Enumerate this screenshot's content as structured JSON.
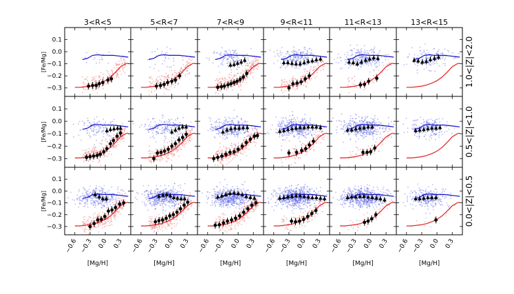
{
  "chart_data": {
    "type": "scatter",
    "xlabel": "[Mg/H]",
    "ylabel": "[Fe/Mg]",
    "xlim": [
      -0.8,
      0.5
    ],
    "ylim": [
      -0.37,
      0.2
    ],
    "xticks": [
      -0.6,
      -0.3,
      0.0,
      0.3
    ],
    "xtick_labels": [
      "−0.6",
      "−0.3",
      "0.0",
      "0.3"
    ],
    "yticks": [
      -0.3,
      -0.2,
      -0.1,
      0.0,
      0.1
    ],
    "ytick_labels": [
      "−0.3",
      "−0.2",
      "−0.1",
      "0.0",
      "0.1"
    ],
    "columns": [
      "3<R<5",
      "5<R<7",
      "7<R<9",
      "9<R<11",
      "11<R<13",
      "13<R<15"
    ],
    "rows": [
      "1.0<|Z|<2.0",
      "0.5<|Z|<1.0",
      "0.0<|Z|<0.5"
    ],
    "colors": {
      "blue_points": "#5b63e6",
      "red_points": "#f08080",
      "blue_line": "#1010c8",
      "red_line": "#e02020",
      "markers": "#000000"
    },
    "model_lines": {
      "blue": {
        "x": [
          -0.45,
          -0.35,
          -0.25,
          -0.15,
          -0.05,
          0.05,
          0.15,
          0.25,
          0.35,
          0.45
        ],
        "y": [
          -0.065,
          -0.055,
          -0.03,
          -0.025,
          -0.03,
          -0.03,
          -0.03,
          -0.035,
          -0.04,
          -0.045
        ]
      },
      "red": {
        "x": [
          -0.6,
          -0.5,
          -0.4,
          -0.3,
          -0.2,
          -0.1,
          0.0,
          0.1,
          0.2,
          0.3,
          0.4,
          0.45
        ],
        "y": [
          -0.295,
          -0.295,
          -0.29,
          -0.285,
          -0.275,
          -0.26,
          -0.24,
          -0.21,
          -0.17,
          -0.125,
          -0.1,
          -0.095
        ]
      }
    },
    "panels": [
      {
        "row": 0,
        "col": 0,
        "red_mean": {
          "x": [
            -0.33,
            -0.25,
            -0.18,
            -0.12,
            -0.05,
            0.05,
            0.12
          ],
          "y": [
            -0.285,
            -0.28,
            -0.28,
            -0.265,
            -0.255,
            -0.235,
            -0.225
          ]
        },
        "blue_mean": {
          "x": [],
          "y": []
        },
        "blue_density": 0.05,
        "red_density": 0.7
      },
      {
        "row": 0,
        "col": 1,
        "red_mean": {
          "x": [
            -0.3,
            -0.22,
            -0.15,
            -0.08,
            0.0,
            0.07,
            0.15
          ],
          "y": [
            -0.285,
            -0.28,
            -0.27,
            -0.255,
            -0.245,
            -0.235,
            -0.2
          ]
        },
        "blue_mean": {
          "x": [],
          "y": []
        },
        "blue_density": 0.1,
        "red_density": 0.7
      },
      {
        "row": 0,
        "col": 2,
        "red_mean": {
          "x": [
            -0.4,
            -0.33,
            -0.27,
            -0.2,
            -0.14,
            -0.08,
            -0.02,
            0.04,
            0.1,
            0.17
          ],
          "y": [
            -0.295,
            -0.29,
            -0.285,
            -0.275,
            -0.265,
            -0.255,
            -0.245,
            -0.23,
            -0.21,
            -0.18
          ]
        },
        "blue_mean": {
          "x": [
            -0.15,
            -0.08,
            -0.01,
            0.06,
            0.13
          ],
          "y": [
            -0.11,
            -0.105,
            -0.095,
            -0.085,
            -0.07
          ]
        },
        "blue_density": 0.4,
        "red_density": 1.0
      },
      {
        "row": 0,
        "col": 3,
        "red_mean": {
          "x": [
            -0.3,
            -0.22,
            -0.14,
            -0.06,
            0.02,
            0.1
          ],
          "y": [
            -0.3,
            -0.265,
            -0.26,
            -0.25,
            -0.225,
            -0.2
          ]
        },
        "blue_mean": {
          "x": [
            -0.4,
            -0.32,
            -0.24,
            -0.16,
            -0.08,
            0.0,
            0.08,
            0.16,
            0.24,
            0.32
          ],
          "y": [
            -0.09,
            -0.09,
            -0.095,
            -0.1,
            -0.1,
            -0.09,
            -0.08,
            -0.075,
            -0.065,
            -0.06
          ]
        },
        "blue_density": 0.7,
        "red_density": 0.5
      },
      {
        "row": 0,
        "col": 4,
        "red_mean": {
          "x": [
            -0.2,
            -0.12,
            -0.04,
            0.12
          ],
          "y": [
            -0.275,
            -0.27,
            -0.245,
            -0.22
          ]
        },
        "blue_mean": {
          "x": [
            -0.42,
            -0.34,
            -0.26,
            -0.18,
            -0.1,
            -0.02,
            0.06,
            0.14
          ],
          "y": [
            -0.085,
            -0.09,
            -0.1,
            -0.085,
            -0.07,
            -0.06,
            -0.05,
            -0.055
          ]
        },
        "blue_density": 0.8,
        "red_density": 0.2
      },
      {
        "row": 0,
        "col": 5,
        "red_mean": {
          "x": [],
          "y": []
        },
        "blue_mean": {
          "x": [
            -0.45,
            -0.37,
            -0.29,
            -0.21,
            -0.13,
            -0.05,
            0.03
          ],
          "y": [
            -0.07,
            -0.075,
            -0.085,
            -0.08,
            -0.065,
            -0.055,
            -0.045
          ]
        },
        "blue_density": 0.5,
        "red_density": 0.0
      },
      {
        "row": 1,
        "col": 0,
        "red_mean": {
          "x": [
            -0.37,
            -0.3,
            -0.23,
            -0.16,
            -0.1,
            -0.03,
            0.03,
            0.1,
            0.16,
            0.23,
            0.3
          ],
          "y": [
            -0.29,
            -0.285,
            -0.28,
            -0.275,
            -0.265,
            -0.245,
            -0.22,
            -0.18,
            -0.155,
            -0.12,
            -0.095
          ]
        },
        "blue_mean": {
          "x": [
            0.03,
            0.1,
            0.17,
            0.24,
            0.3
          ],
          "y": [
            -0.075,
            -0.065,
            -0.06,
            -0.055,
            -0.055
          ]
        },
        "blue_density": 0.35,
        "red_density": 1.0
      },
      {
        "row": 1,
        "col": 1,
        "red_mean": {
          "x": [
            -0.35,
            -0.28,
            -0.21,
            -0.14,
            -0.07,
            0.0,
            0.07,
            0.14,
            0.21,
            0.28
          ],
          "y": [
            -0.3,
            -0.255,
            -0.25,
            -0.24,
            -0.225,
            -0.2,
            -0.18,
            -0.15,
            -0.13,
            -0.105
          ]
        },
        "blue_mean": {
          "x": [
            0.0,
            0.07,
            0.14,
            0.21,
            0.28
          ],
          "y": [
            -0.085,
            -0.07,
            -0.055,
            -0.045,
            -0.045
          ]
        },
        "blue_density": 0.5,
        "red_density": 1.0
      },
      {
        "row": 1,
        "col": 2,
        "red_mean": {
          "x": [
            -0.48,
            -0.4,
            -0.32,
            -0.24,
            -0.16,
            -0.08,
            0.0,
            0.08,
            0.16,
            0.24,
            0.32,
            0.38
          ],
          "y": [
            -0.3,
            -0.29,
            -0.28,
            -0.265,
            -0.25,
            -0.245,
            -0.225,
            -0.2,
            -0.17,
            -0.145,
            -0.12,
            -0.115
          ]
        },
        "blue_mean": {
          "x": [
            -0.3,
            -0.22,
            -0.14,
            -0.06,
            0.02,
            0.1,
            0.18
          ],
          "y": [
            -0.085,
            -0.07,
            -0.06,
            -0.055,
            -0.055,
            -0.05,
            -0.05
          ]
        },
        "blue_density": 0.9,
        "red_density": 0.9
      },
      {
        "row": 1,
        "col": 3,
        "red_mean": {
          "x": [
            -0.3,
            -0.15,
            -0.05,
            0.03,
            0.1,
            0.18
          ],
          "y": [
            -0.255,
            -0.25,
            -0.235,
            -0.22,
            -0.19,
            -0.16
          ]
        },
        "blue_mean": {
          "x": [
            -0.48,
            -0.4,
            -0.32,
            -0.24,
            -0.16,
            -0.08,
            0.0,
            0.08,
            0.16,
            0.24,
            0.32
          ],
          "y": [
            -0.08,
            -0.075,
            -0.065,
            -0.06,
            -0.055,
            -0.05,
            -0.05,
            -0.045,
            -0.045,
            -0.045,
            -0.05
          ]
        },
        "blue_density": 1.2,
        "red_density": 0.4
      },
      {
        "row": 1,
        "col": 4,
        "red_mean": {
          "x": [
            -0.15,
            -0.07,
            0.0,
            0.08
          ],
          "y": [
            -0.25,
            -0.25,
            -0.245,
            -0.215
          ]
        },
        "blue_mean": {
          "x": [
            -0.45,
            -0.37,
            -0.29,
            -0.21,
            -0.13,
            -0.05,
            0.03
          ],
          "y": [
            -0.07,
            -0.07,
            -0.06,
            -0.055,
            -0.05,
            -0.045,
            -0.045
          ]
        },
        "blue_density": 1.3,
        "red_density": 0.15
      },
      {
        "row": 1,
        "col": 5,
        "red_mean": {
          "x": [],
          "y": []
        },
        "blue_mean": {
          "x": [
            -0.42,
            -0.34,
            -0.26,
            -0.18,
            -0.1,
            -0.02,
            0.06
          ],
          "y": [
            -0.075,
            -0.07,
            -0.065,
            -0.06,
            -0.055,
            -0.055,
            -0.05
          ]
        },
        "blue_density": 0.6,
        "red_density": 0.0
      },
      {
        "row": 2,
        "col": 0,
        "red_mean": {
          "x": [
            -0.3,
            -0.22,
            -0.15,
            -0.08,
            -0.01,
            0.06,
            0.13,
            0.2,
            0.28,
            0.36
          ],
          "y": [
            -0.3,
            -0.275,
            -0.245,
            -0.24,
            -0.215,
            -0.17,
            -0.16,
            -0.14,
            -0.11,
            -0.1
          ]
        },
        "blue_mean": {
          "x": [
            -0.2,
            -0.12,
            -0.05,
            0.02
          ],
          "y": [
            -0.03,
            -0.05,
            -0.065,
            -0.065
          ]
        },
        "blue_density": 1.0,
        "red_density": 1.0
      },
      {
        "row": 2,
        "col": 1,
        "red_mean": {
          "x": [
            -0.32,
            -0.25,
            -0.18,
            -0.11,
            -0.04,
            0.03,
            0.1,
            0.17,
            0.24,
            0.31
          ],
          "y": [
            -0.26,
            -0.25,
            -0.245,
            -0.23,
            -0.21,
            -0.2,
            -0.18,
            -0.15,
            -0.12,
            -0.095
          ]
        },
        "blue_mean": {
          "x": [
            -0.25,
            -0.17,
            -0.1,
            -0.03,
            0.04,
            0.11,
            0.18,
            0.25
          ],
          "y": [
            -0.045,
            -0.035,
            -0.03,
            -0.04,
            -0.055,
            -0.06,
            -0.065,
            -0.065
          ]
        },
        "blue_density": 1.4,
        "red_density": 1.0
      },
      {
        "row": 2,
        "col": 2,
        "red_mean": {
          "x": [
            -0.45,
            -0.37,
            -0.29,
            -0.21,
            -0.13,
            -0.05,
            0.03,
            0.11,
            0.19,
            0.27,
            0.35
          ],
          "y": [
            -0.29,
            -0.285,
            -0.27,
            -0.255,
            -0.245,
            -0.23,
            -0.21,
            -0.18,
            -0.15,
            -0.12,
            -0.1
          ]
        },
        "blue_mean": {
          "x": [
            -0.4,
            -0.32,
            -0.24,
            -0.16,
            -0.08,
            0.0,
            0.08,
            0.16,
            0.24,
            0.32
          ],
          "y": [
            -0.05,
            -0.04,
            -0.03,
            -0.02,
            -0.015,
            -0.02,
            -0.03,
            -0.045,
            -0.055,
            -0.06
          ]
        },
        "blue_density": 1.6,
        "red_density": 0.9
      },
      {
        "row": 2,
        "col": 3,
        "red_mean": {
          "x": [
            -0.25,
            -0.17,
            -0.09,
            -0.01,
            0.07,
            0.15,
            0.23
          ],
          "y": [
            -0.255,
            -0.26,
            -0.255,
            -0.24,
            -0.215,
            -0.19,
            -0.165
          ]
        },
        "blue_mean": {
          "x": [
            -0.48,
            -0.4,
            -0.32,
            -0.24,
            -0.16,
            -0.08,
            0.0,
            0.08,
            0.16,
            0.24,
            0.32,
            0.4
          ],
          "y": [
            -0.06,
            -0.055,
            -0.05,
            -0.045,
            -0.04,
            -0.04,
            -0.045,
            -0.05,
            -0.055,
            -0.055,
            -0.06,
            -0.065
          ]
        },
        "blue_density": 2.0,
        "red_density": 0.45
      },
      {
        "row": 2,
        "col": 4,
        "red_mean": {
          "x": [
            -0.12,
            -0.05,
            0.02,
            0.1
          ],
          "y": [
            -0.265,
            -0.255,
            -0.235,
            -0.2
          ]
        },
        "blue_mean": {
          "x": [
            -0.45,
            -0.37,
            -0.29,
            -0.21,
            -0.13,
            -0.05,
            0.03,
            0.11,
            0.19,
            0.27
          ],
          "y": [
            -0.055,
            -0.05,
            -0.05,
            -0.045,
            -0.045,
            -0.05,
            -0.055,
            -0.06,
            -0.065,
            -0.075
          ]
        },
        "blue_density": 1.8,
        "red_density": 0.15
      },
      {
        "row": 2,
        "col": 5,
        "red_mean": {
          "x": [
            -0.02
          ],
          "y": [
            -0.245
          ]
        },
        "blue_mean": {
          "x": [
            -0.42,
            -0.34,
            -0.26,
            -0.18,
            -0.1,
            -0.02
          ],
          "y": [
            -0.065,
            -0.065,
            -0.06,
            -0.055,
            -0.055,
            -0.055
          ]
        },
        "blue_density": 0.8,
        "red_density": 0.05
      }
    ]
  }
}
